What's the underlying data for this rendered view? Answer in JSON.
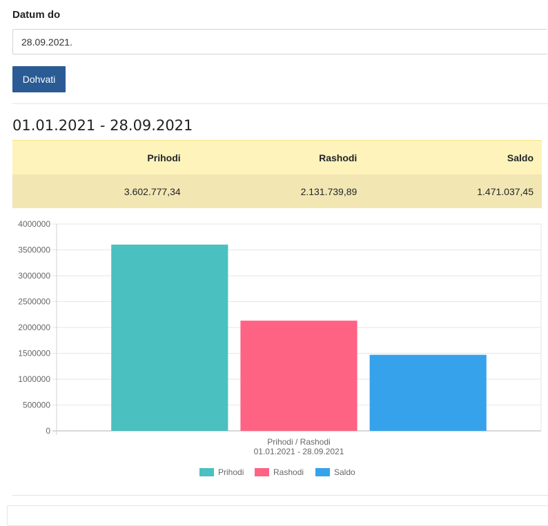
{
  "form": {
    "date_label": "Datum do",
    "date_value": "28.09.2021.",
    "fetch_button": "Dohvati"
  },
  "period_title": "01.01.2021 - 28.09.2021",
  "summary": {
    "headers": [
      "Prihodi",
      "Rashodi",
      "Saldo"
    ],
    "values": [
      "3.602.777,34",
      "2.131.739,89",
      "1.471.037,45"
    ]
  },
  "chart_data": {
    "type": "bar",
    "categories": [
      "Prihodi / Rashodi"
    ],
    "series": [
      {
        "name": "Prihodi",
        "values": [
          3602777.34
        ],
        "color": "#4bc0c0"
      },
      {
        "name": "Rashodi",
        "values": [
          2131739.89
        ],
        "color": "#ff6384"
      },
      {
        "name": "Saldo",
        "values": [
          1471037.45
        ],
        "color": "#36a2eb"
      }
    ],
    "xlabel": [
      "Prihodi / Rashodi",
      "01.01.2021 - 28.09.2021"
    ],
    "ylim": [
      0,
      4000000
    ],
    "yticks": [
      0,
      500000,
      1000000,
      1500000,
      2000000,
      2500000,
      3000000,
      3500000,
      4000000
    ],
    "grid": true,
    "legend": "bottom"
  }
}
